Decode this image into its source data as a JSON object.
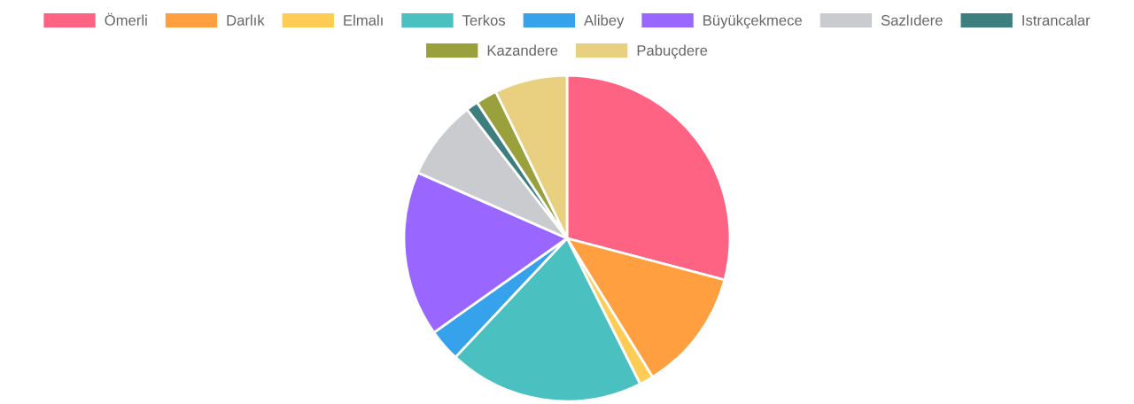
{
  "chart_data": {
    "type": "pie",
    "categories": [
      "Ömerli",
      "Darlık",
      "Elmalı",
      "Terkos",
      "Alibey",
      "Büyükçekmece",
      "Sazlıdere",
      "Istrancalar",
      "Kazandere",
      "Pabuçdere"
    ],
    "values": [
      29.1,
      12.1,
      1.4,
      19.4,
      3.2,
      16.4,
      7.9,
      1.2,
      2.1,
      7.2
    ],
    "colors": [
      "#ff6384",
      "#ff9f40",
      "#ffcd56",
      "#4bc0c0",
      "#36a2eb",
      "#9966ff",
      "#c9cbcf",
      "#3d7f7f",
      "#9aa03c",
      "#e9cf80"
    ],
    "legend": "top"
  }
}
